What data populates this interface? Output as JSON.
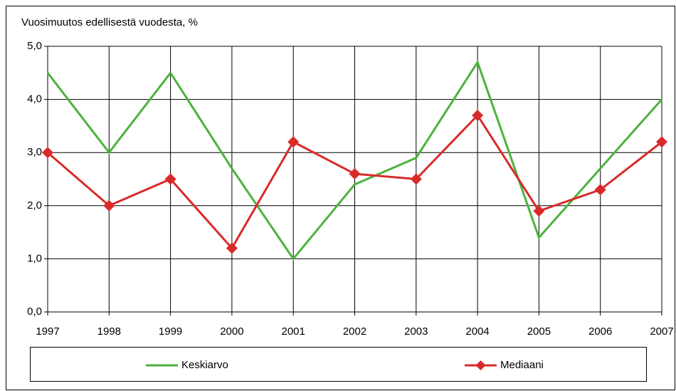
{
  "chart_data": {
    "type": "line",
    "title": "Vuosimuutos edellisestä vuodesta, %",
    "categories": [
      "1997",
      "1998",
      "1999",
      "2000",
      "2001",
      "2002",
      "2003",
      "2004",
      "2005",
      "2006",
      "2007"
    ],
    "series": [
      {
        "name": "Keskiarvo",
        "color": "#4cb33c",
        "values": [
          4.5,
          3.0,
          4.5,
          2.7,
          1.0,
          2.4,
          2.9,
          4.7,
          1.4,
          2.7,
          4.0
        ]
      },
      {
        "name": "Mediaani",
        "color": "#d92a2a",
        "marker": "diamond",
        "values": [
          3.0,
          2.0,
          2.5,
          1.2,
          3.2,
          2.6,
          2.5,
          3.7,
          1.9,
          2.3,
          3.2
        ]
      }
    ],
    "ylim": [
      0,
      5
    ],
    "yticks": [
      {
        "value": 0,
        "label": "0,0"
      },
      {
        "value": 1,
        "label": "1,0"
      },
      {
        "value": 2,
        "label": "2,0"
      },
      {
        "value": 3,
        "label": "3,0"
      },
      {
        "value": 4,
        "label": "4,0"
      },
      {
        "value": 5,
        "label": "5,0"
      }
    ],
    "grid": true,
    "legend": "bottom"
  }
}
